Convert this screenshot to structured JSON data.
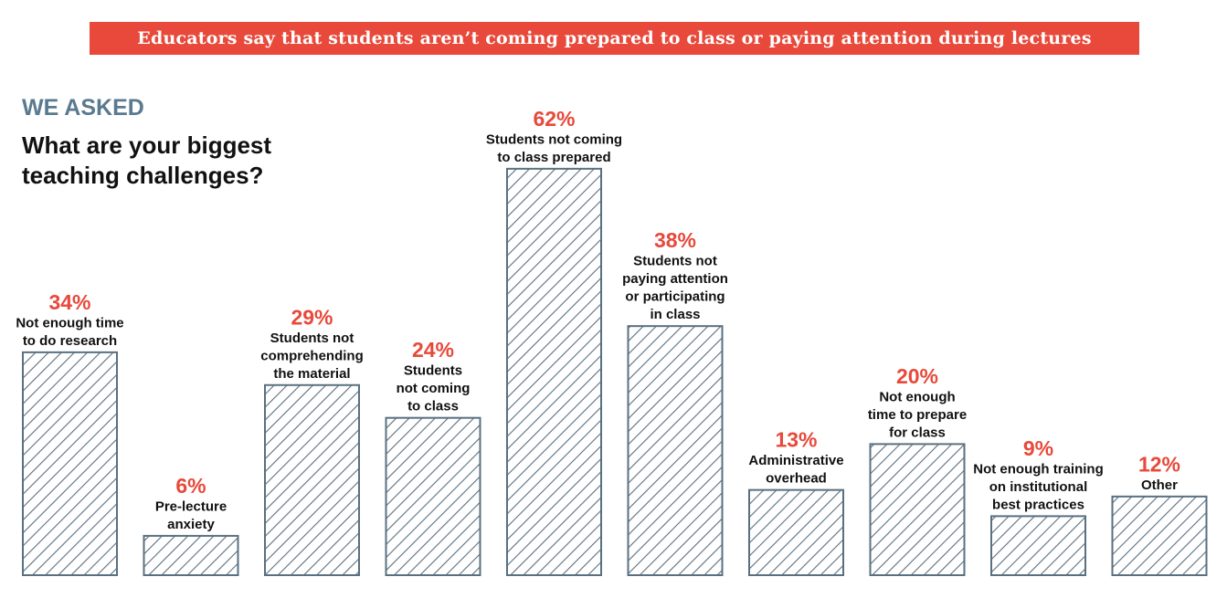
{
  "header": {
    "banner": "Educators say that students aren’t coming prepared to class or paying attention during lectures",
    "eyebrow": "WE ASKED",
    "question": "What are your biggest teaching challenges?"
  },
  "colors": {
    "accent": "#e8493a",
    "eyebrow": "#5a7a90",
    "bar_stroke": "#5a7080",
    "text": "#111111"
  },
  "chart_data": {
    "type": "bar",
    "title": "",
    "xlabel": "",
    "ylabel": "",
    "unit": "%",
    "ylim": [
      0,
      100
    ],
    "grid": false,
    "legend": "none",
    "categories": [
      [
        "Not enough time",
        "to do research"
      ],
      [
        "Pre-lecture",
        "anxiety"
      ],
      [
        "Students not",
        "comprehending",
        "the material"
      ],
      [
        "Students",
        "not coming",
        "to class"
      ],
      [
        "Students not coming",
        "to class prepared"
      ],
      [
        "Students not",
        "paying attention",
        "or participating",
        "in class"
      ],
      [
        "Administrative",
        "overhead"
      ],
      [
        "Not enough",
        "time to prepare",
        "for class"
      ],
      [
        "Not enough training",
        "on institutional",
        "best practices"
      ],
      [
        "Other"
      ]
    ],
    "values": [
      34,
      6,
      29,
      24,
      62,
      38,
      13,
      20,
      9,
      12
    ],
    "value_labels": [
      "34%",
      "6%",
      "29%",
      "24%",
      "62%",
      "38%",
      "13%",
      "20%",
      "9%",
      "12%"
    ]
  }
}
